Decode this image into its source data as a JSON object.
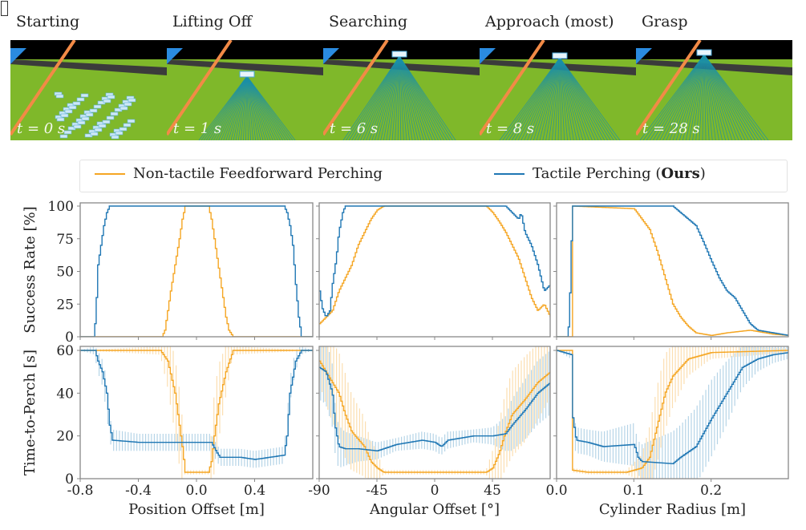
{
  "frames": [
    {
      "title": "Starting",
      "time": "t = 0 s"
    },
    {
      "title": "Lifting Off",
      "time": "t = 1 s"
    },
    {
      "title": "Searching",
      "time": "t = 6 s"
    },
    {
      "title": "Approach (most)",
      "time": "t = 8 s"
    },
    {
      "title": "Grasp",
      "time": "t = 28 s"
    }
  ],
  "legend": {
    "nontactile": "Non-tactile Feedforward Perching",
    "tactile_prefix": "Tactile Perching (",
    "tactile_bold": "Ours",
    "tactile_suffix": ")"
  },
  "colors": {
    "tactile": "#1f77b4",
    "nontactile": "#f5a623",
    "tactile_err": "#a9cde3",
    "nontactile_err": "#fbd9a4"
  },
  "chart_data": {
    "type": "line",
    "rows": {
      "success": {
        "ylabel": "Success Rate [%]",
        "ylim": [
          0,
          100
        ],
        "yticks": [
          0,
          25,
          50,
          75,
          100
        ],
        "yticklabels": [
          "0",
          "25",
          "50",
          "75",
          "100"
        ]
      },
      "time": {
        "ylabel": "Time-to-Perch [s]",
        "ylim": [
          0,
          60
        ],
        "yticks": [
          0,
          20,
          40,
          60
        ],
        "yticklabels": [
          "0",
          "20",
          "40",
          "60"
        ]
      }
    },
    "panels": [
      {
        "xlabel": "Position Offset [m]",
        "xlim": [
          -0.8,
          0.8
        ],
        "xticks": [
          -0.8,
          -0.4,
          0.0,
          0.4
        ],
        "xticklabels": [
          "-0.8",
          "-0.4",
          "0.0",
          "0.4"
        ],
        "success": {
          "tactile": [
            [
              -0.8,
              0
            ],
            [
              -0.71,
              0
            ],
            [
              -0.7,
              10
            ],
            [
              -0.69,
              30
            ],
            [
              -0.68,
              55
            ],
            [
              -0.66,
              70
            ],
            [
              -0.64,
              85
            ],
            [
              -0.62,
              95
            ],
            [
              -0.6,
              100
            ],
            [
              0.6,
              100
            ],
            [
              0.62,
              95
            ],
            [
              0.64,
              85
            ],
            [
              0.66,
              70
            ],
            [
              0.68,
              40
            ],
            [
              0.7,
              15
            ],
            [
              0.72,
              0
            ],
            [
              0.8,
              0
            ]
          ],
          "nontactile": [
            [
              -0.8,
              0
            ],
            [
              -0.24,
              0
            ],
            [
              -0.22,
              5
            ],
            [
              -0.2,
              20
            ],
            [
              -0.18,
              35
            ],
            [
              -0.15,
              55
            ],
            [
              -0.12,
              75
            ],
            [
              -0.1,
              90
            ],
            [
              -0.08,
              100
            ],
            [
              0.08,
              100
            ],
            [
              0.1,
              90
            ],
            [
              0.12,
              75
            ],
            [
              0.14,
              60
            ],
            [
              0.16,
              45
            ],
            [
              0.18,
              30
            ],
            [
              0.2,
              15
            ],
            [
              0.22,
              5
            ],
            [
              0.25,
              0
            ],
            [
              0.8,
              0
            ]
          ]
        },
        "time": {
          "tactile": [
            [
              -0.8,
              60,
              0
            ],
            [
              -0.7,
              60,
              2
            ],
            [
              -0.68,
              55,
              5
            ],
            [
              -0.65,
              50,
              6
            ],
            [
              -0.62,
              40,
              8
            ],
            [
              -0.6,
              25,
              6
            ],
            [
              -0.58,
              18,
              5
            ],
            [
              -0.4,
              17,
              4
            ],
            [
              -0.2,
              17,
              4
            ],
            [
              0.1,
              17,
              4
            ],
            [
              0.14,
              12,
              4
            ],
            [
              0.16,
              10,
              4
            ],
            [
              0.3,
              10,
              4
            ],
            [
              0.4,
              9,
              4
            ],
            [
              0.6,
              11,
              4
            ],
            [
              0.62,
              20,
              5
            ],
            [
              0.64,
              40,
              6
            ],
            [
              0.68,
              55,
              5
            ],
            [
              0.72,
              60,
              2
            ],
            [
              0.8,
              60,
              0
            ]
          ],
          "nontactile": [
            [
              -0.8,
              60,
              0
            ],
            [
              -0.25,
              60,
              2
            ],
            [
              -0.2,
              55,
              12
            ],
            [
              -0.15,
              40,
              18
            ],
            [
              -0.12,
              25,
              18
            ],
            [
              -0.1,
              15,
              15
            ],
            [
              -0.08,
              3,
              1
            ],
            [
              0.08,
              3,
              1
            ],
            [
              0.1,
              8,
              12
            ],
            [
              0.12,
              20,
              18
            ],
            [
              0.15,
              35,
              18
            ],
            [
              0.2,
              50,
              12
            ],
            [
              0.25,
              60,
              2
            ],
            [
              0.8,
              60,
              0
            ]
          ]
        }
      },
      {
        "xlabel": "Angular Offset [°]",
        "xlim": [
          -90,
          90
        ],
        "xticks": [
          -90,
          -45,
          0,
          45
        ],
        "xticklabels": [
          "-90",
          "-45",
          "0",
          "45"
        ],
        "success": {
          "tactile": [
            [
              -90,
              35
            ],
            [
              -88,
              22
            ],
            [
              -85,
              15
            ],
            [
              -82,
              20
            ],
            [
              -80,
              40
            ],
            [
              -77,
              60
            ],
            [
              -75,
              80
            ],
            [
              -72,
              95
            ],
            [
              -70,
              100
            ],
            [
              55,
              100
            ],
            [
              60,
              95
            ],
            [
              65,
              90
            ],
            [
              67,
              95
            ],
            [
              70,
              80
            ],
            [
              75,
              70
            ],
            [
              80,
              55
            ],
            [
              85,
              35
            ],
            [
              90,
              40
            ]
          ],
          "nontactile": [
            [
              -90,
              10
            ],
            [
              -85,
              15
            ],
            [
              -80,
              20
            ],
            [
              -75,
              35
            ],
            [
              -70,
              45
            ],
            [
              -65,
              55
            ],
            [
              -60,
              70
            ],
            [
              -55,
              80
            ],
            [
              -50,
              90
            ],
            [
              -45,
              97
            ],
            [
              -40,
              100
            ],
            [
              40,
              100
            ],
            [
              45,
              95
            ],
            [
              50,
              88
            ],
            [
              55,
              80
            ],
            [
              60,
              70
            ],
            [
              65,
              60
            ],
            [
              70,
              45
            ],
            [
              75,
              30
            ],
            [
              80,
              20
            ],
            [
              85,
              25
            ],
            [
              90,
              15
            ]
          ]
        },
        "time": {
          "tactile": [
            [
              -90,
              52,
              15
            ],
            [
              -85,
              50,
              15
            ],
            [
              -80,
              40,
              15
            ],
            [
              -78,
              25,
              12
            ],
            [
              -75,
              15,
              10
            ],
            [
              -70,
              14,
              8
            ],
            [
              -60,
              14,
              6
            ],
            [
              -45,
              13,
              4
            ],
            [
              -30,
              16,
              3
            ],
            [
              -10,
              18,
              4
            ],
            [
              0,
              17,
              4
            ],
            [
              5,
              15,
              4
            ],
            [
              10,
              18,
              4
            ],
            [
              30,
              20,
              3
            ],
            [
              45,
              20,
              4
            ],
            [
              55,
              21,
              8
            ],
            [
              60,
              25,
              12
            ],
            [
              70,
              32,
              14
            ],
            [
              80,
              40,
              15
            ],
            [
              90,
              45,
              15
            ]
          ],
          "nontactile": [
            [
              -90,
              55,
              10
            ],
            [
              -85,
              50,
              15
            ],
            [
              -80,
              45,
              18
            ],
            [
              -75,
              40,
              20
            ],
            [
              -70,
              30,
              20
            ],
            [
              -65,
              22,
              18
            ],
            [
              -55,
              15,
              14
            ],
            [
              -50,
              8,
              10
            ],
            [
              -45,
              5,
              8
            ],
            [
              -40,
              3,
              1
            ],
            [
              0,
              3,
              1
            ],
            [
              40,
              3,
              1
            ],
            [
              45,
              5,
              8
            ],
            [
              50,
              12,
              14
            ],
            [
              55,
              22,
              18
            ],
            [
              60,
              30,
              20
            ],
            [
              70,
              37,
              20
            ],
            [
              80,
              45,
              18
            ],
            [
              90,
              50,
              12
            ]
          ]
        }
      },
      {
        "xlabel": "Cylinder Radius [m]",
        "xlim": [
          0.0,
          0.3
        ],
        "xticks": [
          0.0,
          0.1,
          0.2
        ],
        "xticklabels": [
          "0.0",
          "0.1",
          "0.2"
        ],
        "success": {
          "tactile": [
            [
              0,
              0
            ],
            [
              0.014,
              0
            ],
            [
              0.016,
              15
            ],
            [
              0.02,
              100
            ],
            [
              0.15,
              100
            ],
            [
              0.16,
              95
            ],
            [
              0.17,
              90
            ],
            [
              0.18,
              85
            ],
            [
              0.19,
              72
            ],
            [
              0.2,
              58
            ],
            [
              0.21,
              45
            ],
            [
              0.22,
              35
            ],
            [
              0.23,
              30
            ],
            [
              0.24,
              20
            ],
            [
              0.25,
              10
            ],
            [
              0.26,
              5
            ],
            [
              0.28,
              3
            ],
            [
              0.3,
              1
            ]
          ],
          "nontactile": [
            [
              0,
              0
            ],
            [
              0.019,
              0
            ],
            [
              0.02,
              100
            ],
            [
              0.1,
              98
            ],
            [
              0.11,
              90
            ],
            [
              0.12,
              82
            ],
            [
              0.13,
              65
            ],
            [
              0.14,
              45
            ],
            [
              0.15,
              25
            ],
            [
              0.16,
              15
            ],
            [
              0.17,
              8
            ],
            [
              0.18,
              3
            ],
            [
              0.2,
              1
            ],
            [
              0.22,
              3
            ],
            [
              0.25,
              5
            ],
            [
              0.28,
              2
            ],
            [
              0.3,
              1
            ]
          ]
        },
        "time": {
          "tactile": [
            [
              0,
              60,
              0
            ],
            [
              0.019,
              58,
              2
            ],
            [
              0.02,
              30,
              10
            ],
            [
              0.025,
              18,
              6
            ],
            [
              0.04,
              17,
              6
            ],
            [
              0.06,
              15,
              7
            ],
            [
              0.1,
              16,
              10
            ],
            [
              0.105,
              10,
              8
            ],
            [
              0.11,
              8,
              8
            ],
            [
              0.15,
              7,
              15
            ],
            [
              0.16,
              10,
              15
            ],
            [
              0.18,
              15,
              18
            ],
            [
              0.2,
              28,
              18
            ],
            [
              0.22,
              40,
              15
            ],
            [
              0.24,
              52,
              10
            ],
            [
              0.26,
              56,
              6
            ],
            [
              0.28,
              58,
              4
            ],
            [
              0.3,
              59,
              3
            ]
          ],
          "nontactile": [
            [
              0,
              60,
              0
            ],
            [
              0.019,
              60,
              0
            ],
            [
              0.02,
              4,
              1
            ],
            [
              0.04,
              3,
              1
            ],
            [
              0.09,
              3,
              1
            ],
            [
              0.11,
              5,
              6
            ],
            [
              0.12,
              10,
              14
            ],
            [
              0.13,
              25,
              18
            ],
            [
              0.14,
              40,
              18
            ],
            [
              0.15,
              48,
              15
            ],
            [
              0.17,
              56,
              8
            ],
            [
              0.2,
              59,
              3
            ],
            [
              0.3,
              60,
              1
            ]
          ]
        }
      }
    ]
  }
}
